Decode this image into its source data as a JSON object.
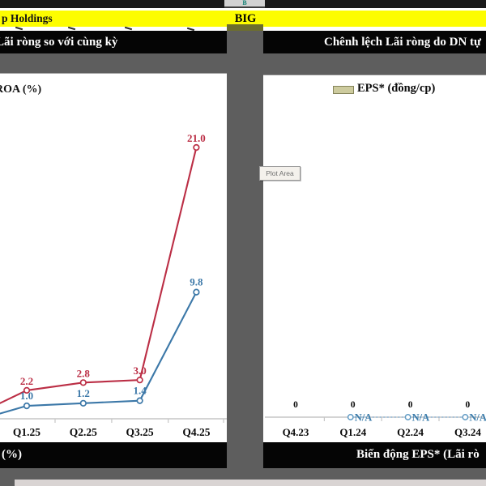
{
  "spreadsheet": {
    "column_header": "B",
    "title_left": "p Holdings",
    "ticker": "BIG"
  },
  "tooltip": {
    "label": "Plot Area"
  },
  "left_section": {
    "header": "Lãi ròng so với cùng kỳ",
    "footer": "(%)",
    "chart_data": {
      "type": "line",
      "legend": "ROA (%)",
      "categories": [
        "Q1.25",
        "Q2.25",
        "Q3.25",
        "Q4.25"
      ],
      "series": [
        {
          "color": "#bb2e45",
          "values": [
            2.2,
            2.8,
            3.0,
            21.0
          ],
          "labels": [
            "2.2",
            "2.8",
            "3.0",
            "21.0"
          ]
        },
        {
          "color": "#3c78a8",
          "values": [
            1.0,
            1.2,
            1.4,
            9.8
          ],
          "labels": [
            "1.0",
            "1.2",
            "1.4",
            "9.8"
          ]
        }
      ],
      "ylim": [
        0,
        22
      ],
      "grid": false,
      "legend_position": "top-left"
    }
  },
  "right_section": {
    "header": "Chênh lệch Lãi ròng do DN tự",
    "footer": "Biến động EPS* (Lãi rò",
    "chart_data": {
      "type": "combo",
      "legend": "EPS* (đồng/cp)",
      "categories": [
        "Q4.23",
        "Q1.24",
        "Q2.24",
        "Q3.24"
      ],
      "bar_series": {
        "name": "EPS* (đồng/cp)",
        "values": [
          0,
          0,
          0,
          0
        ],
        "labels": [
          "0",
          "0",
          "0",
          "0"
        ]
      },
      "line_series": {
        "start_index": 1,
        "values": [
          null,
          null,
          null
        ],
        "labels": [
          "N/A",
          "N/A",
          "N/A"
        ]
      },
      "ylim": [
        0,
        1
      ],
      "grid": false,
      "legend_position": "top-center"
    }
  },
  "colors": {
    "title_row_yellow": "#fdfd00",
    "header_bar_black": "#050505",
    "series_red": "#bb2e45",
    "series_blue": "#3c78a8",
    "na_dash_blue": "#93b9d9",
    "na_marker_blue": "#5f9ac4",
    "na_text_blue": "#3b7cab",
    "legend_swatch_khaki": "#cdcb9e",
    "axis_gray": "#c6c6c6",
    "background_gray": "#5e5e5e"
  }
}
